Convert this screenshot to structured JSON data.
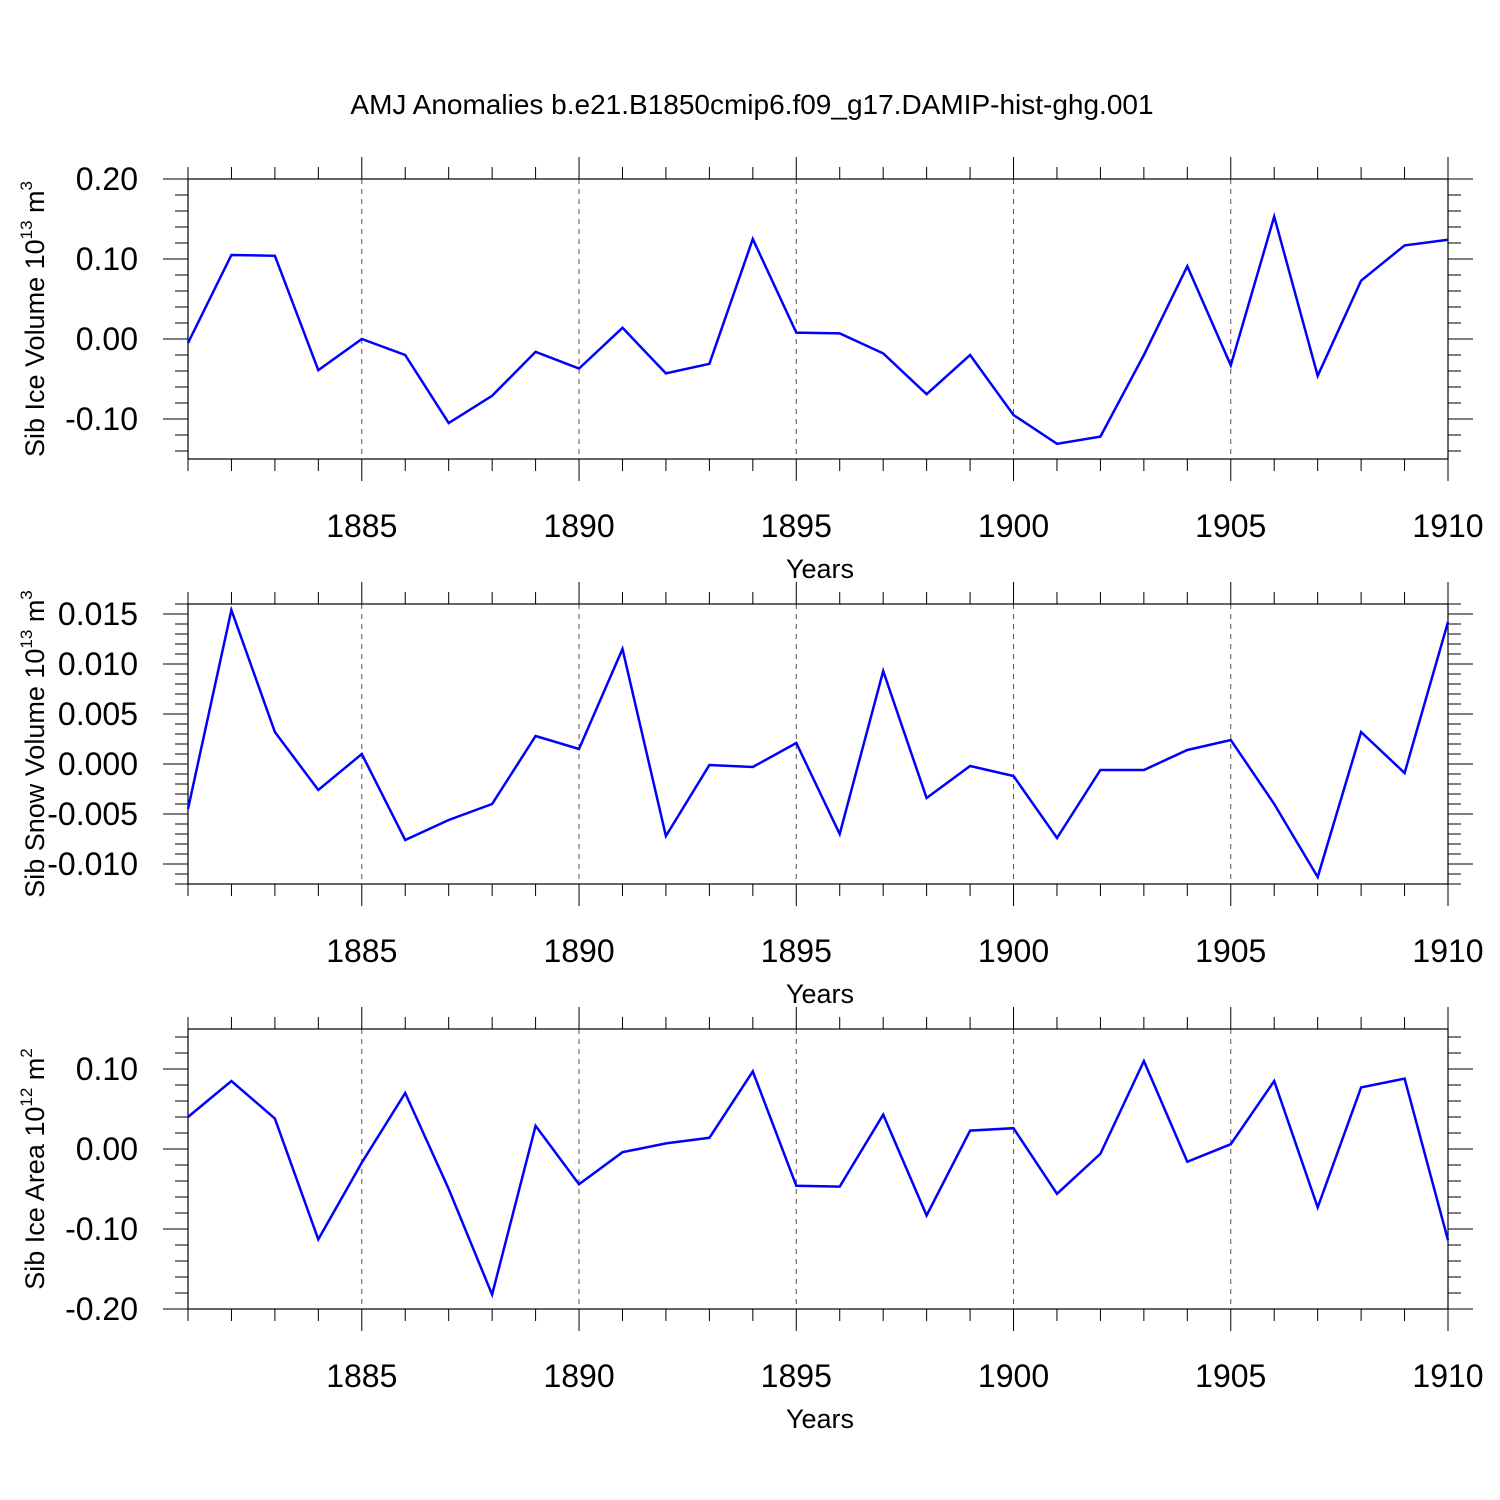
{
  "figure_title": "AMJ Anomalies b.e21.B1850cmip6.f09_g17.DAMIP-hist-ghg.001",
  "colors": {
    "line": "#0000ff",
    "axis": "#000000",
    "grid": "#555555"
  },
  "chart_data": [
    {
      "type": "line",
      "ylabel_main": "Sib Ice Volume 10",
      "ylabel_exp1": "13",
      "ylabel_mid": " m",
      "ylabel_exp2": "3",
      "xlabel": "Years",
      "xlim": [
        1881,
        1910
      ],
      "ylim": [
        -0.15,
        0.2
      ],
      "yticks": [
        -0.1,
        0.0,
        0.1,
        0.2
      ],
      "ytick_labels": [
        "-0.10",
        "0.00",
        "0.10",
        "0.20"
      ],
      "xticks": [
        1885,
        1890,
        1895,
        1900,
        1905,
        1910
      ],
      "xtick_labels": [
        "1885",
        "1890",
        "1895",
        "1900",
        "1905",
        "1910"
      ],
      "x": [
        1881,
        1882,
        1883,
        1884,
        1885,
        1886,
        1887,
        1888,
        1889,
        1890,
        1891,
        1892,
        1893,
        1894,
        1895,
        1896,
        1897,
        1898,
        1899,
        1900,
        1901,
        1902,
        1903,
        1904,
        1905,
        1906,
        1907,
        1908,
        1909,
        1910
      ],
      "values": [
        -0.005,
        0.105,
        0.104,
        -0.039,
        0.0,
        -0.02,
        -0.105,
        -0.071,
        -0.016,
        -0.037,
        0.014,
        -0.043,
        -0.031,
        0.125,
        0.008,
        0.007,
        -0.018,
        -0.069,
        -0.02,
        -0.095,
        -0.131,
        -0.122,
        -0.02,
        0.091,
        -0.033,
        0.153,
        -0.046,
        0.073,
        0.117,
        0.124
      ]
    },
    {
      "type": "line",
      "ylabel_main": "Sib Snow Volume 10",
      "ylabel_exp1": "13",
      "ylabel_mid": " m",
      "ylabel_exp2": "3",
      "xlabel": "Years",
      "xlim": [
        1881,
        1910
      ],
      "ylim": [
        -0.012,
        0.016
      ],
      "yticks": [
        -0.01,
        -0.005,
        0.0,
        0.005,
        0.01,
        0.015
      ],
      "ytick_labels": [
        "-0.010",
        "-0.005",
        "0.000",
        "0.005",
        "0.010",
        "0.015"
      ],
      "xticks": [
        1885,
        1890,
        1895,
        1900,
        1905,
        1910
      ],
      "xtick_labels": [
        "1885",
        "1890",
        "1895",
        "1900",
        "1905",
        "1910"
      ],
      "x": [
        1881,
        1882,
        1883,
        1884,
        1885,
        1886,
        1887,
        1888,
        1889,
        1890,
        1891,
        1892,
        1893,
        1894,
        1895,
        1896,
        1897,
        1898,
        1899,
        1900,
        1901,
        1902,
        1903,
        1904,
        1905,
        1906,
        1907,
        1908,
        1909,
        1910
      ],
      "values": [
        -0.0045,
        0.0154,
        0.0032,
        -0.0026,
        0.001,
        -0.0076,
        -0.0056,
        -0.004,
        0.0028,
        0.0015,
        0.0115,
        -0.0072,
        -0.0001,
        -0.0003,
        0.0021,
        -0.007,
        0.0093,
        -0.0034,
        -0.0002,
        -0.0012,
        -0.0074,
        -0.0006,
        -0.0006,
        0.0014,
        0.0024,
        -0.004,
        -0.0113,
        0.0032,
        -0.0009,
        0.0142
      ]
    },
    {
      "type": "line",
      "ylabel_main": "Sib Ice Area 10",
      "ylabel_exp1": "12",
      "ylabel_mid": " m",
      "ylabel_exp2": "2",
      "xlabel": "Years",
      "xlim": [
        1881,
        1910
      ],
      "ylim": [
        -0.2,
        0.15
      ],
      "yticks": [
        -0.2,
        -0.1,
        0.0,
        0.1
      ],
      "ytick_labels": [
        "-0.20",
        "-0.10",
        "0.00",
        "0.10"
      ],
      "xticks": [
        1885,
        1890,
        1895,
        1900,
        1905,
        1910
      ],
      "xtick_labels": [
        "1885",
        "1890",
        "1895",
        "1900",
        "1905",
        "1910"
      ],
      "x": [
        1881,
        1882,
        1883,
        1884,
        1885,
        1886,
        1887,
        1888,
        1889,
        1890,
        1891,
        1892,
        1893,
        1894,
        1895,
        1896,
        1897,
        1898,
        1899,
        1900,
        1901,
        1902,
        1903,
        1904,
        1905,
        1906,
        1907,
        1908,
        1909,
        1910
      ],
      "values": [
        0.04,
        0.085,
        0.038,
        -0.113,
        -0.017,
        0.07,
        -0.05,
        -0.182,
        0.029,
        -0.044,
        -0.004,
        0.007,
        0.014,
        0.097,
        -0.046,
        -0.047,
        0.043,
        -0.083,
        0.023,
        0.026,
        -0.056,
        -0.006,
        0.11,
        -0.016,
        0.006,
        0.085,
        -0.073,
        0.077,
        0.088,
        -0.114
      ]
    }
  ]
}
